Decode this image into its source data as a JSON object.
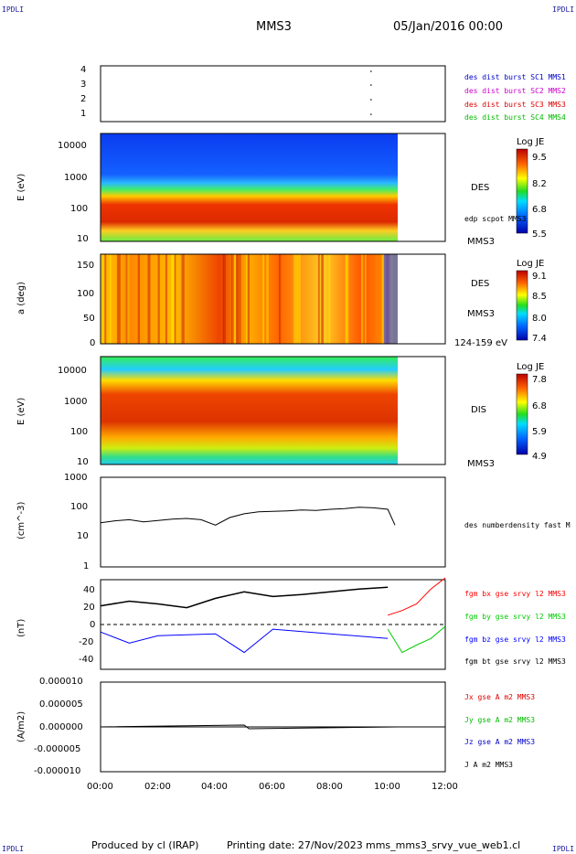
{
  "header": {
    "corner_left": "IPDLI",
    "corner_right": "IPDLI",
    "spacecraft": "MMS3",
    "date": "05/Jan/2016 00:00"
  },
  "footer": {
    "produced": "Produced by cl (IRAP)",
    "printing": "Printing date: 27/Nov/2023",
    "file": "mms_mms3_srvy_vue_web1.cl",
    "corner_left": "IPDLI",
    "corner_right": "IPDLI"
  },
  "colors": {
    "sc1": "#0000cc",
    "sc2": "#cc00cc",
    "sc3": "#dd0000",
    "sc4": "#00bb00",
    "bx": "#ff0000",
    "by": "#00cc00",
    "bz": "#0000ff",
    "bt": "#000000"
  },
  "chart_data": [
    {
      "type": "scatter",
      "panel": "burst",
      "yticks": [
        "4",
        "3",
        "2",
        "1"
      ],
      "legend": [
        "des dist burst SC1 MMS1",
        "des dist burst SC2 MMS2",
        "des dist burst SC3 MMS3",
        "des dist burst SC4 MMS4"
      ],
      "points": [
        {
          "x": "09:25",
          "y": 4
        },
        {
          "x": "09:25",
          "y": 3
        },
        {
          "x": "09:25",
          "y": 2
        },
        {
          "x": "09:25",
          "y": 1
        }
      ]
    },
    {
      "type": "heatmap",
      "panel": "des-energy",
      "ylabel": "E (eV)",
      "yticks": [
        "10000",
        "1000",
        "100",
        "10"
      ],
      "ylim": [
        10,
        30000
      ],
      "yscale": "log",
      "data_end": "10:20",
      "labels": [
        "DES",
        "edp scpot MMS3",
        "MMS3"
      ],
      "colorbar": {
        "title": "Log JE",
        "ticks": [
          "9.5",
          "8.2",
          "6.8",
          "5.5"
        ],
        "range": [
          5.5,
          9.5
        ]
      }
    },
    {
      "type": "heatmap",
      "panel": "des-pitch",
      "ylabel": "a (deg)",
      "yticks": [
        "150",
        "100",
        "50",
        "0"
      ],
      "ylim": [
        0,
        180
      ],
      "data_end": "10:20",
      "labels": [
        "DES",
        "MMS3",
        "124-159 eV"
      ],
      "colorbar": {
        "title": "Log JE",
        "ticks": [
          "9.1",
          "8.5",
          "8.0",
          "7.4"
        ],
        "range": [
          7.4,
          9.1
        ]
      }
    },
    {
      "type": "heatmap",
      "panel": "dis-energy",
      "ylabel": "E (eV)",
      "yticks": [
        "10000",
        "1000",
        "100",
        "10"
      ],
      "ylim": [
        10,
        30000
      ],
      "yscale": "log",
      "data_end": "10:20",
      "labels": [
        "DIS",
        "MMS3"
      ],
      "colorbar": {
        "title": "Log JE",
        "ticks": [
          "7.8",
          "6.8",
          "5.9",
          "4.9"
        ],
        "range": [
          4.9,
          7.8
        ]
      }
    },
    {
      "type": "line",
      "panel": "density",
      "ylabel": "(cm^-3)",
      "yticks": [
        "1000",
        "100",
        "10",
        "1"
      ],
      "ylim": [
        1,
        1000
      ],
      "yscale": "log",
      "labels": [
        "des numberdensity fast M"
      ],
      "series": [
        {
          "name": "des numberdensity fast M",
          "x": [
            "00:00",
            "00:30",
            "01:00",
            "01:30",
            "02:00",
            "02:30",
            "03:00",
            "03:30",
            "04:00",
            "04:30",
            "05:00",
            "05:30",
            "06:00",
            "06:30",
            "07:00",
            "07:30",
            "08:00",
            "08:30",
            "09:00",
            "09:30",
            "10:00",
            "10:15"
          ],
          "values": [
            30,
            35,
            38,
            32,
            36,
            40,
            42,
            38,
            25,
            45,
            60,
            70,
            72,
            75,
            80,
            78,
            85,
            90,
            100,
            95,
            85,
            25
          ]
        }
      ]
    },
    {
      "type": "line",
      "panel": "fgm",
      "ylabel": "(nT)",
      "yticks": [
        "40",
        "20",
        "0",
        "-20",
        "-40"
      ],
      "ylim": [
        -48,
        48
      ],
      "labels": [
        "fgm bx gse srvy l2 MMS3",
        "fgm by gse srvy l2 MMS3",
        "fgm bz gse srvy l2 MMS3",
        "fgm bt gse srvy l2 MMS3"
      ],
      "series": [
        {
          "name": "fgm bx gse srvy l2 MMS3",
          "x": [
            "10:00",
            "10:30",
            "11:00",
            "11:30",
            "12:00"
          ],
          "values": [
            10,
            15,
            22,
            38,
            50
          ]
        },
        {
          "name": "fgm by gse srvy l2 MMS3",
          "x": [
            "10:00",
            "10:30",
            "11:00",
            "11:30",
            "12:00"
          ],
          "values": [
            -5,
            -30,
            -22,
            -15,
            -2
          ]
        },
        {
          "name": "fgm bz gse srvy l2 MMS3",
          "x": [
            "00:00",
            "01:00",
            "02:00",
            "04:00",
            "05:00",
            "06:00",
            "08:00",
            "10:00"
          ],
          "values": [
            -8,
            -20,
            -12,
            -10,
            -30,
            -5,
            -10,
            -15
          ]
        },
        {
          "name": "fgm bt gse srvy l2 MMS3",
          "x": [
            "00:00",
            "01:00",
            "02:00",
            "03:00",
            "04:00",
            "05:00",
            "06:00",
            "07:00",
            "08:00",
            "09:00",
            "10:00"
          ],
          "values": [
            20,
            25,
            22,
            18,
            28,
            35,
            30,
            32,
            35,
            38,
            40
          ]
        }
      ]
    },
    {
      "type": "line",
      "panel": "current",
      "ylabel": "(A/m2)",
      "yticks": [
        "0.000010",
        "0.000005",
        "0.000000",
        "-0.000005",
        "-0.000010"
      ],
      "ylim": [
        -1e-05,
        1e-05
      ],
      "labels": [
        "Jx gse A m2 MMS3",
        "Jy gse A m2 MMS3",
        "Jz gse A m2 MMS3",
        "J A m2 MMS3"
      ],
      "xticks": [
        "00:00",
        "02:00",
        "04:00",
        "06:00",
        "08:00",
        "10:00",
        "12:00"
      ]
    }
  ]
}
